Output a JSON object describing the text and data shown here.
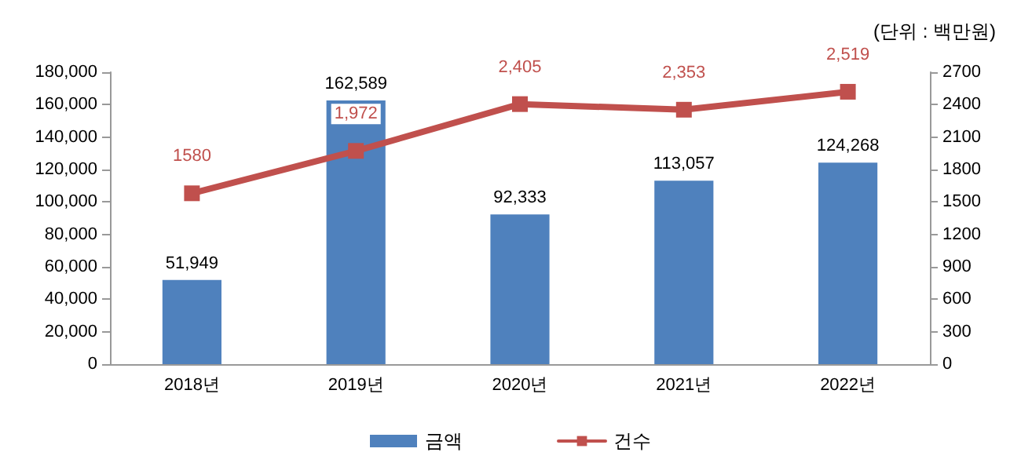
{
  "chart_data": {
    "type": "bar",
    "categories": [
      "2018년",
      "2019년",
      "2020년",
      "2021년",
      "2022년"
    ],
    "series": [
      {
        "name": "금액",
        "color": "#4f81bd",
        "values": [
          51949,
          162589,
          92333,
          113057,
          124268
        ],
        "value_labels": [
          "51,949",
          "162,589",
          "92,333",
          "113,057",
          "124,268"
        ]
      },
      {
        "name": "건수",
        "type": "line",
        "axis": "y2",
        "color": "#c0504d",
        "values": [
          1580,
          1972,
          2405,
          2353,
          2519
        ],
        "value_labels": [
          "1580",
          "1,972",
          "2,405",
          "2,353",
          "2,519"
        ]
      }
    ],
    "ylim": [
      0,
      180000
    ],
    "yticks": [
      0,
      {
        "value": 20000,
        "label": "20,000"
      },
      {
        "value": 40000,
        "label": "40,000"
      },
      {
        "value": 60000,
        "label": "60,000"
      },
      {
        "value": 80000,
        "label": "80,000"
      },
      {
        "value": 100000,
        "label": "100,000"
      },
      {
        "value": 120000,
        "label": "120,000"
      },
      {
        "value": 140000,
        "label": "140,000"
      },
      {
        "value": 160000,
        "label": "160,000"
      },
      {
        "value": 180000,
        "label": "180,000"
      }
    ],
    "y2lim": [
      0,
      2700
    ],
    "y2ticks": [
      0,
      300,
      600,
      900,
      1200,
      1500,
      1800,
      2100,
      2400,
      2700
    ],
    "annotations": [
      "(단위 : 백만원)"
    ],
    "legend": "bottom",
    "grid": false,
    "marker": "square",
    "line_style": "solid"
  }
}
